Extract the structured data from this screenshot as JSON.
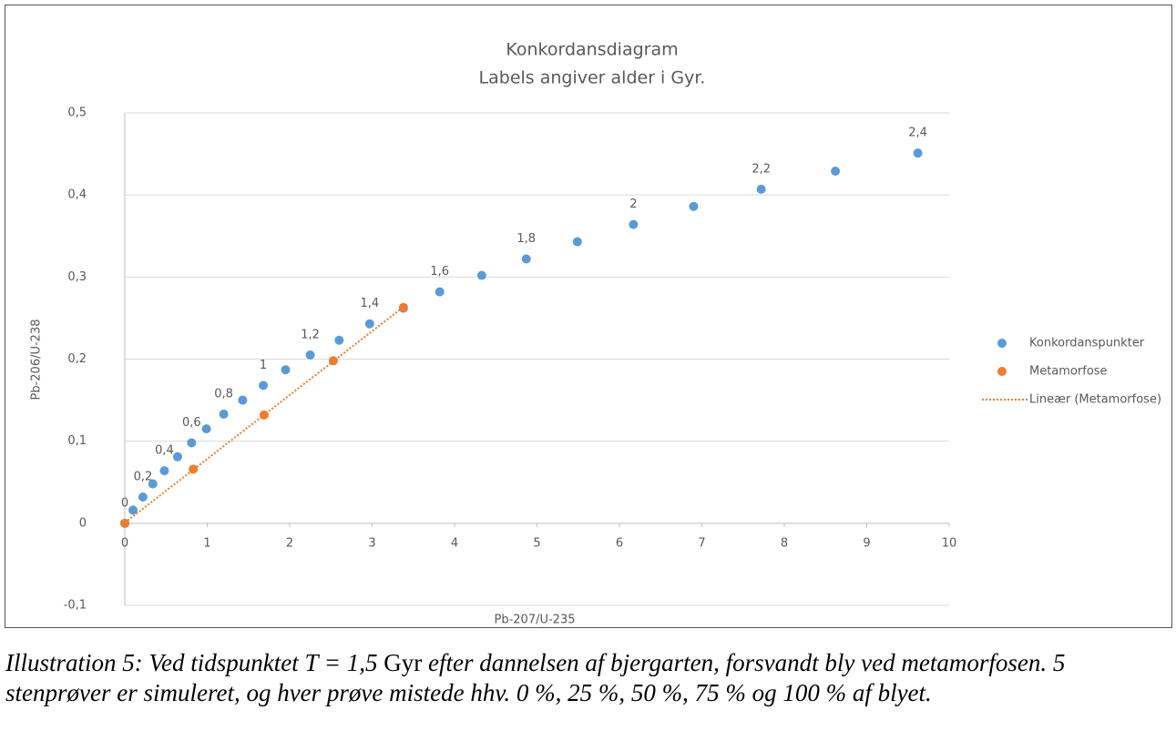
{
  "chart_data": {
    "type": "scatter",
    "title": "Konkordansdiagram",
    "subtitle": "Labels angiver alder i Gyr.",
    "x_label": "Pb-207/U-235",
    "y_label": "Pb-206/U-238",
    "xlim": [
      0,
      10
    ],
    "xticks": [
      0,
      1,
      2,
      3,
      4,
      5,
      6,
      7,
      8,
      9,
      10
    ],
    "ylim": [
      -0.1,
      0.5
    ],
    "yticks": [
      {
        "value": -0.1,
        "label": "-0,1"
      },
      0,
      {
        "value": 0.1,
        "label": "0,1"
      },
      {
        "value": 0.2,
        "label": "0,2"
      },
      {
        "value": 0.3,
        "label": "0,3"
      },
      {
        "value": 0.4,
        "label": "0,4"
      },
      {
        "value": 0.5,
        "label": "0,5"
      }
    ],
    "grid": true,
    "series": [
      {
        "name": "Konkordanspunkter",
        "color": "#5b9bd5",
        "x": [
          0,
          0.1,
          0.22,
          0.34,
          0.48,
          0.64,
          0.81,
          0.99,
          1.2,
          1.43,
          1.68,
          1.95,
          2.25,
          2.6,
          2.97,
          3.38,
          3.82,
          4.33,
          4.87,
          5.49,
          6.17,
          6.9,
          7.72,
          8.62,
          9.62
        ],
        "values": [
          0,
          0.016,
          0.032,
          0.048,
          0.064,
          0.081,
          0.098,
          0.115,
          0.133,
          0.15,
          0.168,
          0.187,
          0.205,
          0.223,
          0.243,
          0.262,
          0.282,
          0.302,
          0.322,
          0.343,
          0.364,
          0.386,
          0.407,
          0.429,
          0.451
        ],
        "point_labels": [
          "0",
          null,
          "0,2",
          null,
          "0,4",
          null,
          "0,6",
          null,
          "0,8",
          null,
          "1",
          null,
          "1,2",
          null,
          "1,4",
          null,
          "1,6",
          null,
          "1,8",
          null,
          "2",
          null,
          "2,2",
          null,
          "2,4"
        ]
      },
      {
        "name": "Metamorfose",
        "color": "#ed7d31",
        "x": [
          0,
          0.83,
          1.69,
          2.53,
          3.38
        ],
        "values": [
          0,
          0.066,
          0.132,
          0.198,
          0.263
        ]
      }
    ],
    "trendline": {
      "name": "Lineær (Metamorfose)",
      "color": "#ed7d31",
      "style": "dotted"
    },
    "legend": "right"
  },
  "caption": {
    "parts": [
      {
        "text": "Illustration 5: Ved tidspunktet T = 1,5 ",
        "italic": true
      },
      {
        "text": "Gyr",
        "italic": false
      },
      {
        "text": " efter dannelsen af bjergarten, forsvandt bly ved metamorfosen. 5 stenprøver er simuleret, og hver prøve mistede hhv. 0 %, 25 %, 50 %, 75 % og 100 % af blyet.",
        "italic": true
      }
    ]
  }
}
